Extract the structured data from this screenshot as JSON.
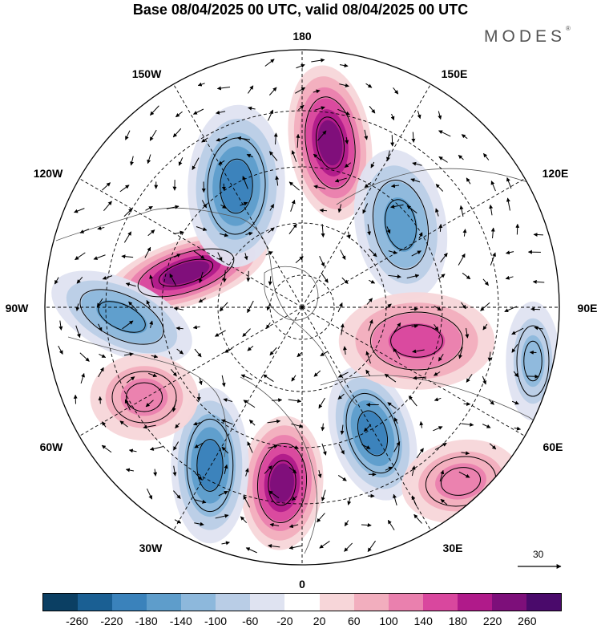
{
  "title": "Base 08/04/2025 00 UTC, valid 08/04/2025 00 UTC",
  "brand": {
    "name": "MODES",
    "mark": "®"
  },
  "lon_labels": [
    "180",
    "150E",
    "120E",
    "90E",
    "60E",
    "30E",
    "0",
    "30W",
    "60W",
    "90W",
    "120W",
    "150W"
  ],
  "colorbar": {
    "ticks": [
      "-260",
      "-220",
      "-180",
      "-140",
      "-100",
      "-60",
      "-20",
      "20",
      "60",
      "100",
      "140",
      "180",
      "220",
      "260"
    ],
    "colors": [
      "#0b3f63",
      "#1a5f93",
      "#3a82bb",
      "#5e9dcb",
      "#8db8dc",
      "#b9cde6",
      "#dfe3f1",
      "#ffffff",
      "#f7d6d9",
      "#f2aebe",
      "#ea80ae",
      "#d9479e",
      "#b01a8a",
      "#7d0f7a",
      "#4a0a6b"
    ]
  },
  "reference_vector": {
    "value": "30"
  },
  "anomaly_centers": [
    {
      "sign": "positive",
      "value": 240
    },
    {
      "sign": "positive",
      "value": 230
    },
    {
      "sign": "positive",
      "value": 220
    },
    {
      "sign": "negative",
      "value": -200
    },
    {
      "sign": "negative",
      "value": -200
    },
    {
      "sign": "negative",
      "value": -180
    },
    {
      "sign": "negative",
      "value": -170
    },
    {
      "sign": "negative",
      "value": -140
    },
    {
      "sign": "positive",
      "value": 140
    },
    {
      "sign": "positive",
      "value": 120
    },
    {
      "sign": "positive",
      "value": 120
    },
    {
      "sign": "negative",
      "value": -100
    }
  ]
}
